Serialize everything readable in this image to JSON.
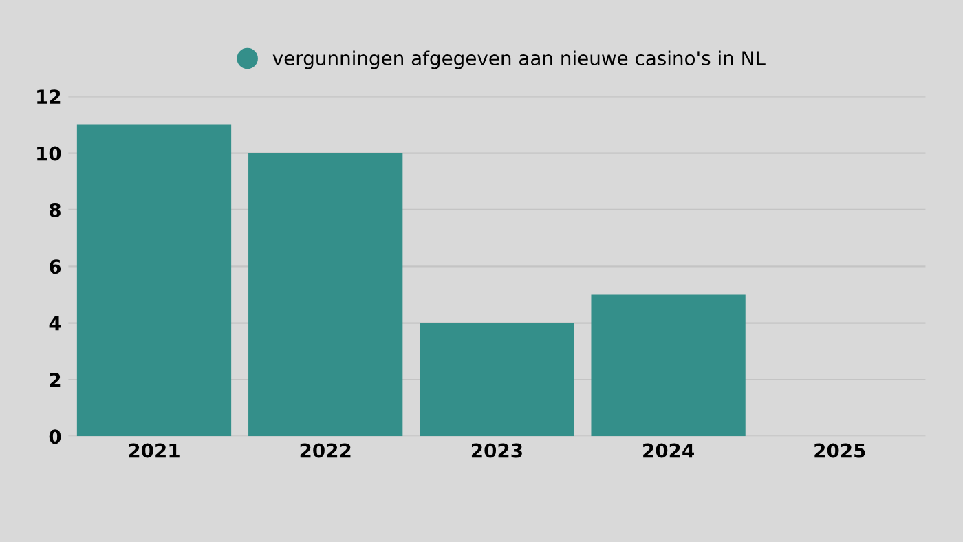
{
  "chart_data": {
    "type": "bar",
    "categories": [
      "2021",
      "2022",
      "2023",
      "2024",
      "2025"
    ],
    "series": [
      {
        "name": "vergunningen afgegeven aan nieuwe casino's in NL",
        "color": "#348f8a",
        "values": [
          11,
          10,
          4,
          5,
          null
        ]
      }
    ],
    "ylim": [
      0,
      12
    ],
    "yticks": [
      0,
      2,
      4,
      6,
      8,
      10,
      12
    ],
    "grid": "y",
    "legend": "top",
    "marker": "circle"
  }
}
